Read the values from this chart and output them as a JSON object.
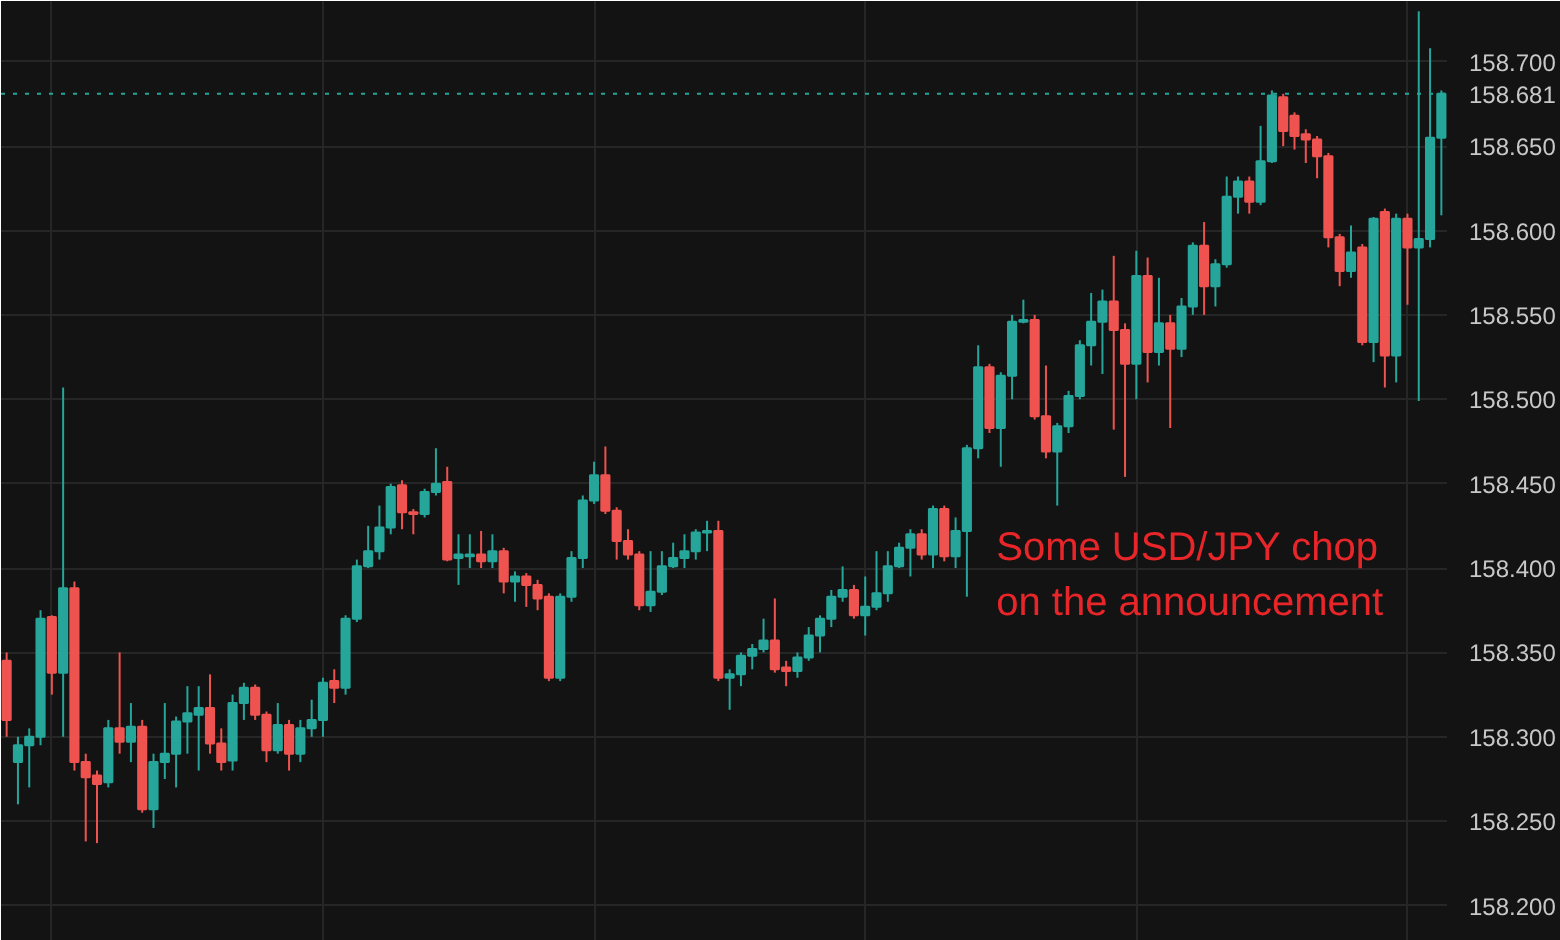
{
  "chart_data": {
    "type": "candlestick",
    "categories": [
      null,
      null,
      null,
      null,
      null,
      null,
      null,
      null,
      null,
      null,
      null,
      null,
      null,
      null,
      null,
      null,
      null,
      null,
      null,
      null,
      null,
      null,
      null,
      null,
      null,
      null,
      null,
      null,
      null,
      null,
      null,
      null,
      null,
      null,
      null,
      null,
      null,
      null,
      null,
      null,
      null,
      null,
      null,
      null,
      null,
      null,
      null,
      null,
      null,
      null,
      null,
      null,
      null,
      null,
      null,
      null,
      null,
      null,
      null,
      null,
      null,
      null,
      null,
      null,
      null,
      null,
      null,
      null,
      null,
      null,
      null,
      null,
      null,
      null,
      null,
      null,
      null,
      null,
      null,
      null,
      null,
      null,
      null,
      null,
      null,
      null,
      null,
      null,
      null,
      null,
      null,
      null,
      null,
      null,
      null,
      null,
      null,
      null,
      null,
      null,
      null,
      null,
      null,
      null,
      null,
      null,
      null,
      null,
      null,
      null,
      null,
      null,
      null,
      null,
      null,
      null,
      null,
      null,
      null,
      null,
      null,
      null,
      null,
      null,
      null,
      null,
      null,
      null
    ],
    "ohlc": [
      [
        158.345,
        158.35,
        158.3,
        158.31
      ],
      [
        158.285,
        158.3,
        158.26,
        158.295
      ],
      [
        158.295,
        158.305,
        158.27,
        158.3
      ],
      [
        158.3,
        158.375,
        158.295,
        158.37
      ],
      [
        158.371,
        158.372,
        158.325,
        158.338
      ],
      [
        158.338,
        158.507,
        158.3,
        158.388
      ],
      [
        158.388,
        158.392,
        158.28,
        158.285
      ],
      [
        158.285,
        158.29,
        158.238,
        158.276
      ],
      [
        158.277,
        158.28,
        158.237,
        158.272
      ],
      [
        158.273,
        158.31,
        158.27,
        158.305
      ],
      [
        158.305,
        158.35,
        158.29,
        158.297
      ],
      [
        158.297,
        158.32,
        158.285,
        158.306
      ],
      [
        158.306,
        158.31,
        158.255,
        158.257
      ],
      [
        158.257,
        158.29,
        158.246,
        158.285
      ],
      [
        158.285,
        158.32,
        158.275,
        158.29
      ],
      [
        158.29,
        158.312,
        158.27,
        158.309
      ],
      [
        158.309,
        158.33,
        158.29,
        158.314
      ],
      [
        158.313,
        158.33,
        158.28,
        158.317
      ],
      [
        158.317,
        158.337,
        158.29,
        158.296
      ],
      [
        158.296,
        158.305,
        158.28,
        158.285
      ],
      [
        158.286,
        158.325,
        158.28,
        158.32
      ],
      [
        158.32,
        158.332,
        158.31,
        158.329
      ],
      [
        158.329,
        158.331,
        158.31,
        158.313
      ],
      [
        158.313,
        158.315,
        158.285,
        158.292
      ],
      [
        158.292,
        158.32,
        158.29,
        158.307
      ],
      [
        158.307,
        158.31,
        158.28,
        158.29
      ],
      [
        158.29,
        158.31,
        158.285,
        158.305
      ],
      [
        158.305,
        158.322,
        158.3,
        158.31
      ],
      [
        158.31,
        158.335,
        158.3,
        158.332
      ],
      [
        158.333,
        158.34,
        158.32,
        158.329
      ],
      [
        158.329,
        158.372,
        158.325,
        158.37
      ],
      [
        158.37,
        158.405,
        158.368,
        158.401
      ],
      [
        158.401,
        158.425,
        158.4,
        158.41
      ],
      [
        158.41,
        158.437,
        158.405,
        158.424
      ],
      [
        158.424,
        158.45,
        158.42,
        158.448
      ],
      [
        158.449,
        158.452,
        158.423,
        158.433
      ],
      [
        158.433,
        158.435,
        158.42,
        158.432
      ],
      [
        158.432,
        158.447,
        158.43,
        158.445
      ],
      [
        158.445,
        158.471,
        158.443,
        158.45
      ],
      [
        158.451,
        158.46,
        158.404,
        158.405
      ],
      [
        158.406,
        158.42,
        158.39,
        158.408
      ],
      [
        158.407,
        158.42,
        158.4,
        158.408
      ],
      [
        158.408,
        158.422,
        158.4,
        158.404
      ],
      [
        158.404,
        158.42,
        158.4,
        158.41
      ],
      [
        158.41,
        158.412,
        158.385,
        158.392
      ],
      [
        158.392,
        158.398,
        158.38,
        158.395
      ],
      [
        158.395,
        158.397,
        158.377,
        158.39
      ],
      [
        158.39,
        158.393,
        158.375,
        158.382
      ],
      [
        158.383,
        158.385,
        158.333,
        158.335
      ],
      [
        158.335,
        158.385,
        158.333,
        158.383
      ],
      [
        158.383,
        158.41,
        158.38,
        158.406
      ],
      [
        158.406,
        158.443,
        158.4,
        158.44
      ],
      [
        158.44,
        158.463,
        158.438,
        158.455
      ],
      [
        158.455,
        158.472,
        158.432,
        158.434
      ],
      [
        158.434,
        158.436,
        158.405,
        158.416
      ],
      [
        158.416,
        158.423,
        158.405,
        158.408
      ],
      [
        158.408,
        158.41,
        158.375,
        158.378
      ],
      [
        158.378,
        158.41,
        158.374,
        158.386
      ],
      [
        158.386,
        158.41,
        158.384,
        158.401
      ],
      [
        158.401,
        158.415,
        158.4,
        158.406
      ],
      [
        158.406,
        158.42,
        158.4,
        158.41
      ],
      [
        158.41,
        158.423,
        158.405,
        158.421
      ],
      [
        158.421,
        158.428,
        158.41,
        158.422
      ],
      [
        158.422,
        158.428,
        158.333,
        158.335
      ],
      [
        158.335,
        158.34,
        158.316,
        158.337
      ],
      [
        158.337,
        158.35,
        158.33,
        158.348
      ],
      [
        158.348,
        158.355,
        158.34,
        158.352
      ],
      [
        158.352,
        158.37,
        158.35,
        158.357
      ],
      [
        158.357,
        158.382,
        158.338,
        158.34
      ],
      [
        158.341,
        158.345,
        158.33,
        158.339
      ],
      [
        158.339,
        158.35,
        158.335,
        158.347
      ],
      [
        158.347,
        158.365,
        158.345,
        158.36
      ],
      [
        158.36,
        158.372,
        158.35,
        158.37
      ],
      [
        158.37,
        158.387,
        158.365,
        158.383
      ],
      [
        158.383,
        158.401,
        158.38,
        158.387
      ],
      [
        158.387,
        158.39,
        158.37,
        158.372
      ],
      [
        158.372,
        158.395,
        158.36,
        158.377
      ],
      [
        158.377,
        158.41,
        158.375,
        158.385
      ],
      [
        158.385,
        158.41,
        158.38,
        158.401
      ],
      [
        158.401,
        158.415,
        158.4,
        158.412
      ],
      [
        158.412,
        158.423,
        158.395,
        158.42
      ],
      [
        158.42,
        158.423,
        158.405,
        158.408
      ],
      [
        158.408,
        158.437,
        158.4,
        158.435
      ],
      [
        158.435,
        158.437,
        158.404,
        158.407
      ],
      [
        158.407,
        158.43,
        158.4,
        158.422
      ],
      [
        158.422,
        158.473,
        158.383,
        158.471
      ],
      [
        158.471,
        158.532,
        158.465,
        158.519
      ],
      [
        158.519,
        158.521,
        158.48,
        158.483
      ],
      [
        158.483,
        158.516,
        158.46,
        158.514
      ],
      [
        158.514,
        158.55,
        158.5,
        158.546
      ],
      [
        158.546,
        158.559,
        158.545,
        158.547
      ],
      [
        158.547,
        158.55,
        158.488,
        158.49
      ],
      [
        158.49,
        158.52,
        158.465,
        158.469
      ],
      [
        158.469,
        158.486,
        158.437,
        158.484
      ],
      [
        158.484,
        158.505,
        158.48,
        158.502
      ],
      [
        158.502,
        158.535,
        158.5,
        158.532
      ],
      [
        158.532,
        158.563,
        158.52,
        158.546
      ],
      [
        158.546,
        158.565,
        158.515,
        158.558
      ],
      [
        158.558,
        158.585,
        158.482,
        158.541
      ],
      [
        158.541,
        158.545,
        158.454,
        158.521
      ],
      [
        158.521,
        158.588,
        158.5,
        158.573
      ],
      [
        158.573,
        158.584,
        158.51,
        158.528
      ],
      [
        158.528,
        158.572,
        158.52,
        158.545
      ],
      [
        158.545,
        158.55,
        158.483,
        158.53
      ],
      [
        158.53,
        158.56,
        158.525,
        158.555
      ],
      [
        158.555,
        158.593,
        158.55,
        158.591
      ],
      [
        158.591,
        158.605,
        158.55,
        158.567
      ],
      [
        158.567,
        158.583,
        158.555,
        158.58
      ],
      [
        158.58,
        158.632,
        158.578,
        158.62
      ],
      [
        158.62,
        158.632,
        158.61,
        158.629
      ],
      [
        158.629,
        158.632,
        158.61,
        158.617
      ],
      [
        158.617,
        158.662,
        158.615,
        158.641
      ],
      [
        158.641,
        158.683,
        158.64,
        158.68
      ],
      [
        158.679,
        158.681,
        158.65,
        158.659
      ],
      [
        158.668,
        158.67,
        158.648,
        158.656
      ],
      [
        158.657,
        158.66,
        158.64,
        158.654
      ],
      [
        158.654,
        158.656,
        158.631,
        158.644
      ],
      [
        158.644,
        158.646,
        158.59,
        158.596
      ],
      [
        158.596,
        158.598,
        158.567,
        158.576
      ],
      [
        158.576,
        158.603,
        158.572,
        158.587
      ],
      [
        158.59,
        158.592,
        158.532,
        158.534
      ],
      [
        158.534,
        158.608,
        158.522,
        158.607
      ],
      [
        158.611,
        158.613,
        158.507,
        158.526
      ],
      [
        158.526,
        158.61,
        158.51,
        158.607
      ],
      [
        158.607,
        158.61,
        158.556,
        158.59
      ],
      [
        158.59,
        158.73,
        158.499,
        158.595
      ],
      [
        158.595,
        158.708,
        158.59,
        158.655
      ],
      [
        158.655,
        158.683,
        158.609,
        158.681
      ]
    ],
    "colors": [
      "#ef5350",
      "#26a69a",
      "#26a69a",
      "#26a69a",
      "#ef5350",
      "#26a69a",
      "#ef5350",
      "#ef5350",
      "#ef5350",
      "#26a69a",
      "#ef5350",
      "#26a69a",
      "#ef5350",
      "#26a69a",
      "#26a69a",
      "#26a69a",
      "#26a69a",
      "#26a69a",
      "#ef5350",
      "#ef5350",
      "#26a69a",
      "#26a69a",
      "#ef5350",
      "#ef5350",
      "#26a69a",
      "#ef5350",
      "#26a69a",
      "#26a69a",
      "#26a69a",
      "#ef5350",
      "#26a69a",
      "#26a69a",
      "#26a69a",
      "#26a69a",
      "#26a69a",
      "#ef5350",
      "#ef5350",
      "#26a69a",
      "#26a69a",
      "#ef5350",
      "#26a69a",
      "#26a69a",
      "#ef5350",
      "#26a69a",
      "#ef5350",
      "#26a69a",
      "#ef5350",
      "#ef5350",
      "#ef5350",
      "#26a69a",
      "#26a69a",
      "#26a69a",
      "#26a69a",
      "#ef5350",
      "#ef5350",
      "#ef5350",
      "#ef5350",
      "#26a69a",
      "#26a69a",
      "#26a69a",
      "#26a69a",
      "#26a69a",
      "#26a69a",
      "#ef5350",
      "#26a69a",
      "#26a69a",
      "#26a69a",
      "#26a69a",
      "#ef5350",
      "#ef5350",
      "#26a69a",
      "#26a69a",
      "#26a69a",
      "#26a69a",
      "#26a69a",
      "#ef5350",
      "#26a69a",
      "#26a69a",
      "#26a69a",
      "#26a69a",
      "#26a69a",
      "#ef5350",
      "#26a69a",
      "#ef5350",
      "#26a69a",
      "#26a69a",
      "#26a69a",
      "#ef5350",
      "#26a69a",
      "#26a69a",
      "#26a69a",
      "#ef5350",
      "#ef5350",
      "#26a69a",
      "#26a69a",
      "#26a69a",
      "#26a69a",
      "#26a69a",
      "#ef5350",
      "#ef5350",
      "#26a69a",
      "#ef5350",
      "#26a69a",
      "#ef5350",
      "#26a69a",
      "#26a69a",
      "#ef5350",
      "#26a69a",
      "#26a69a",
      "#26a69a",
      "#ef5350",
      "#26a69a",
      "#26a69a",
      "#ef5350",
      "#ef5350",
      "#ef5350",
      "#ef5350",
      "#ef5350",
      "#ef5350",
      "#26a69a",
      "#ef5350",
      "#26a69a",
      "#ef5350",
      "#26a69a",
      "#ef5350",
      "#26a69a",
      "#26a69a",
      "#26a69a"
    ],
    "ylim": [
      158.179,
      158.736
    ],
    "yticks": [
      {
        "value": 158.2,
        "label": "158.200"
      },
      {
        "value": 158.25,
        "label": "158.250"
      },
      {
        "value": 158.3,
        "label": "158.300"
      },
      {
        "value": 158.35,
        "label": "158.350"
      },
      {
        "value": 158.4,
        "label": "158.400"
      },
      {
        "value": 158.45,
        "label": "158.450"
      },
      {
        "value": 158.5,
        "label": "158.500"
      },
      {
        "value": 158.55,
        "label": "158.550"
      },
      {
        "value": 158.6,
        "label": "158.600"
      },
      {
        "value": 158.65,
        "label": "158.650"
      },
      {
        "value": 158.7,
        "label": "158.700"
      }
    ],
    "ref_lines": [
      {
        "axis": "y",
        "value": 158.681,
        "label": "158.681",
        "color": "#26a69a",
        "line_style": "dotted"
      }
    ],
    "annotations": [
      "Some USD/JPY chop\non the announcement"
    ],
    "grid": true
  }
}
